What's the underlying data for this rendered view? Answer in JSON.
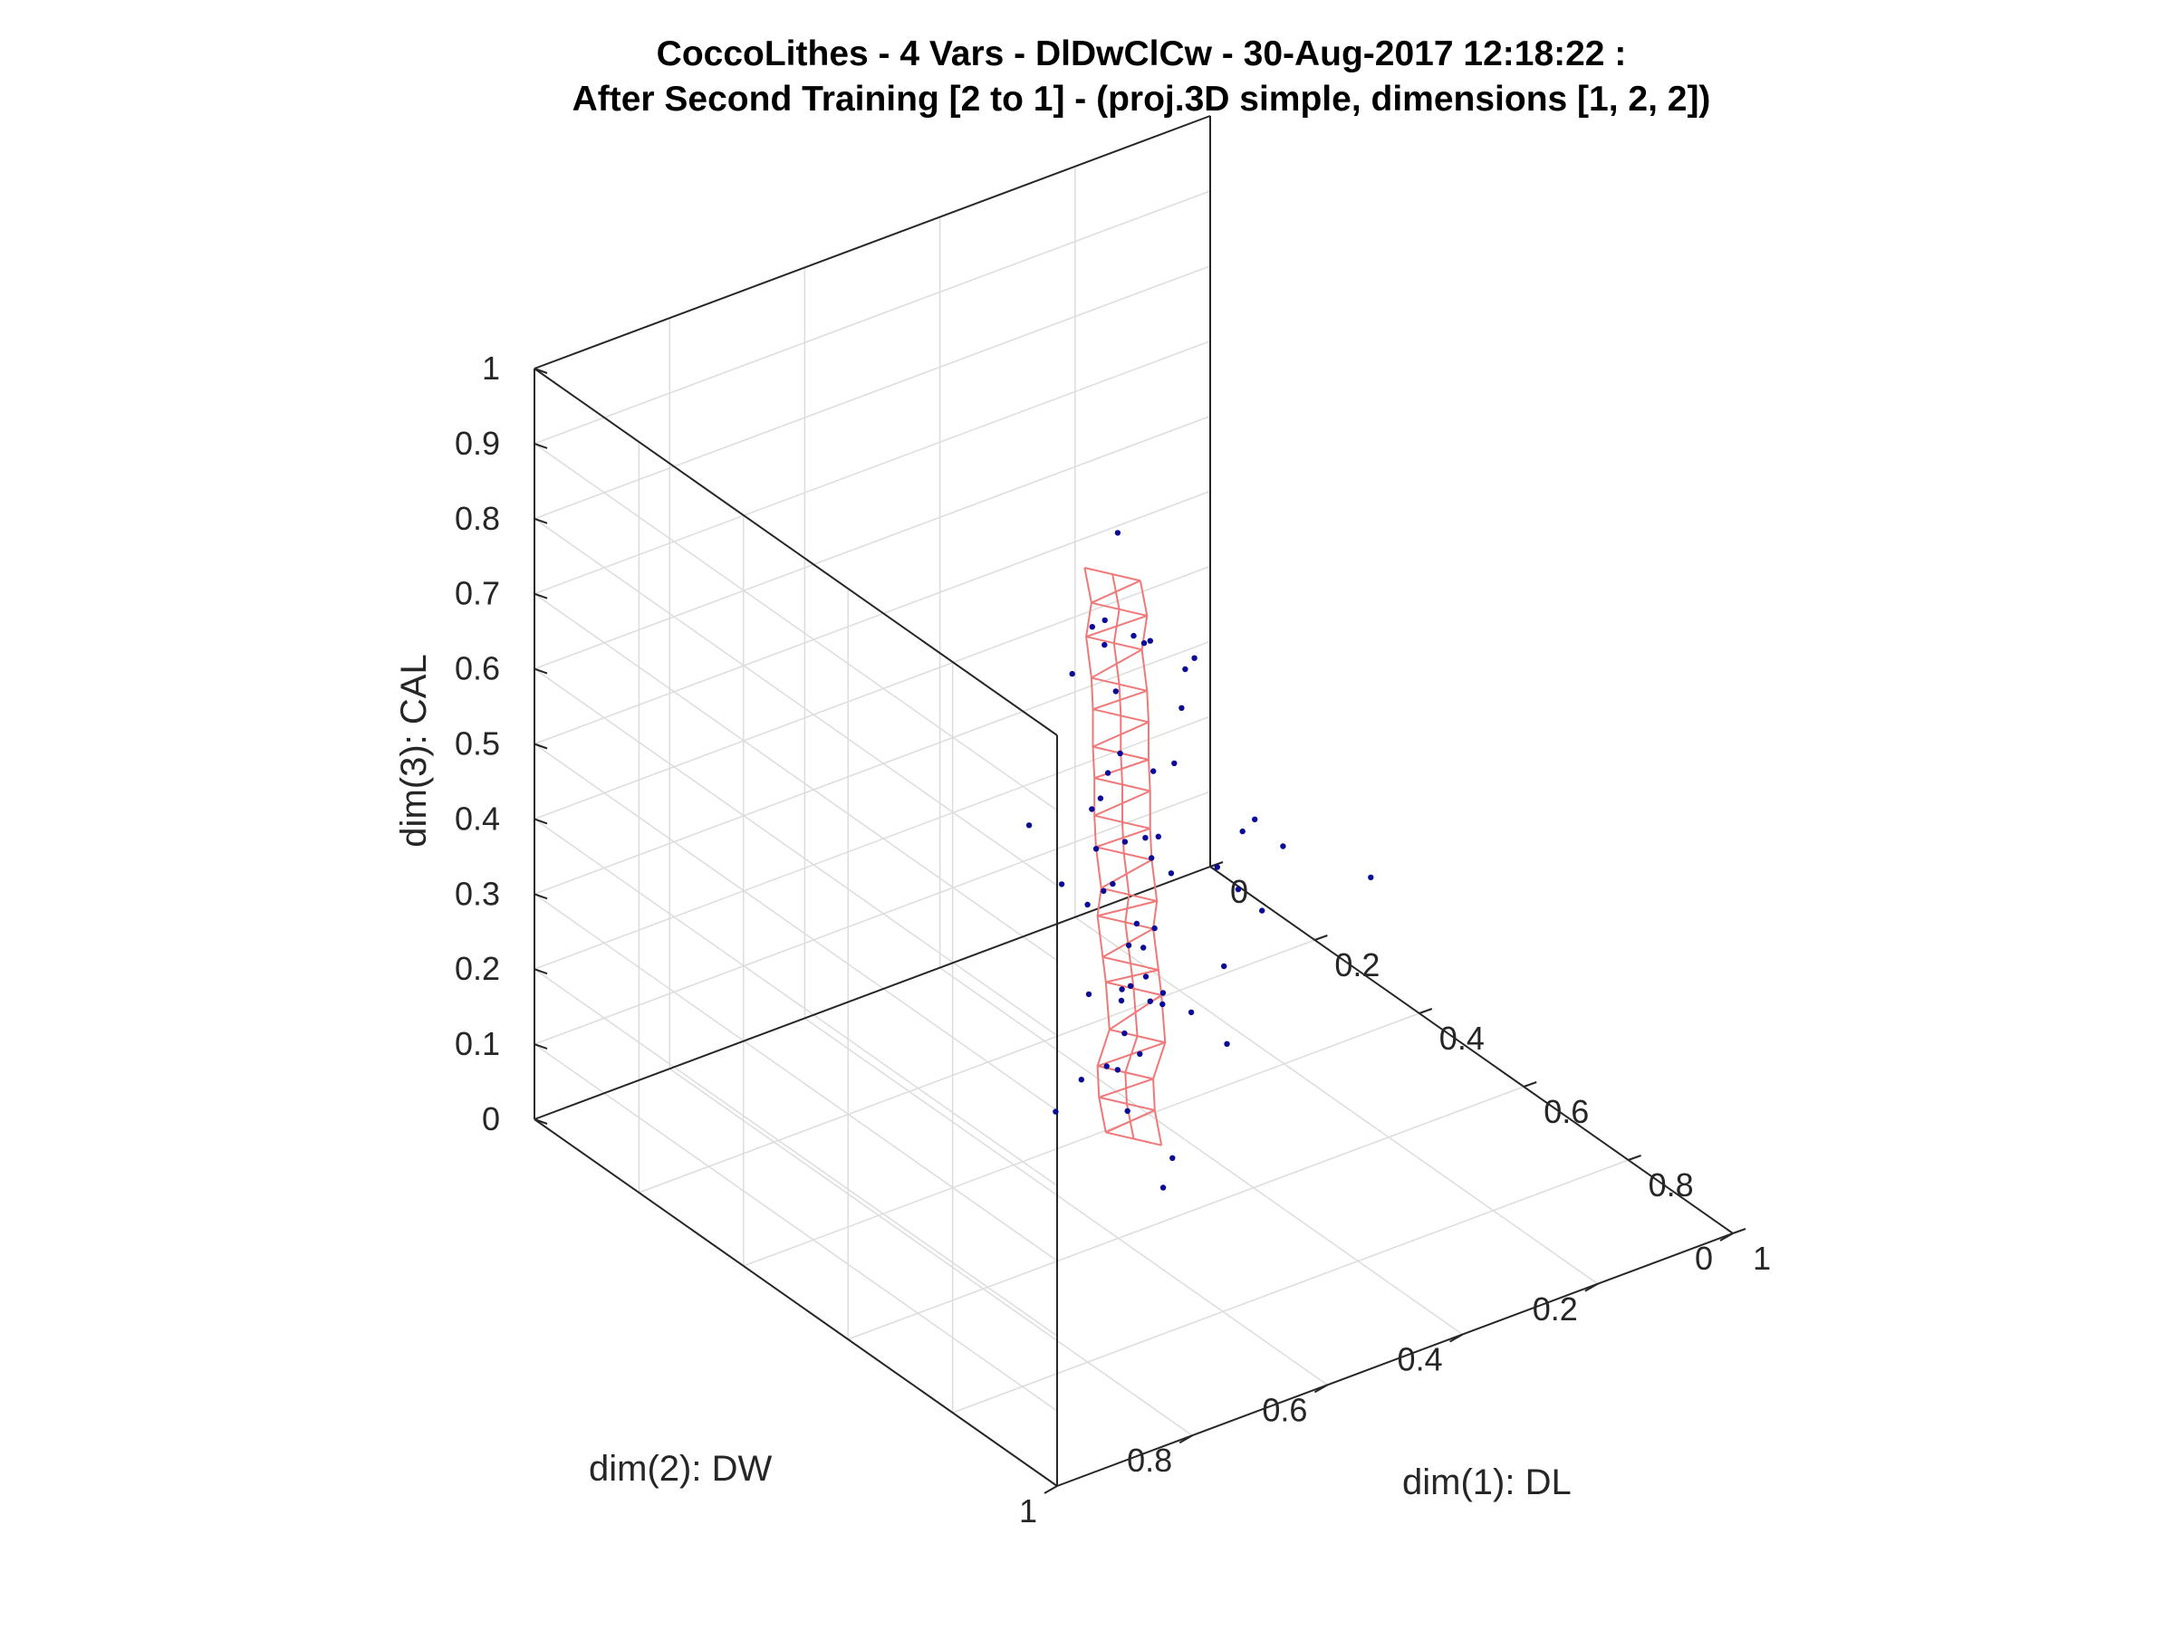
{
  "chart_data": {
    "type": "scatter",
    "title": [
      "CoccoLithes - 4 Vars - DlDwClCw - 30-Aug-2017 12:18:22 :",
      "After Second Training [2 to 1] - (proj.3D simple, dimensions [1, 2, 2])"
    ],
    "xlabel": "dim(1): DL",
    "ylabel": "dim(2): DW",
    "zlabel": "dim(3): CAL",
    "xlim": [
      0,
      1
    ],
    "ylim": [
      0,
      1
    ],
    "zlim": [
      0,
      1
    ],
    "xticks": [
      "0",
      "0.2",
      "0.4",
      "0.6",
      "0.8",
      "1"
    ],
    "yticks": [
      "0",
      "0.2",
      "0.4",
      "0.6",
      "0.8",
      "1"
    ],
    "zticks": [
      "0",
      "0.1",
      "0.2",
      "0.3",
      "0.4",
      "0.5",
      "0.6",
      "0.7",
      "0.8",
      "0.9",
      "1"
    ],
    "grid": true,
    "colors": {
      "points": "#0b0b98",
      "mesh": "#f07878",
      "grid": "#dcdcdc",
      "axes": "#262626"
    },
    "series": [
      {
        "kind": "data-points",
        "points": [
          [
            0.56,
            0.57,
            0.91
          ],
          [
            0.6,
            0.62,
            0.83
          ],
          [
            0.5,
            0.5,
            0.72
          ],
          [
            0.55,
            0.6,
            0.79
          ],
          [
            0.47,
            0.52,
            0.7
          ],
          [
            0.48,
            0.46,
            0.69
          ],
          [
            0.52,
            0.5,
            0.72
          ],
          [
            0.5,
            0.41,
            0.66
          ],
          [
            0.34,
            0.3,
            0.53
          ],
          [
            0.78,
            0.68,
            0.65
          ],
          [
            0.76,
            0.54,
            0.6
          ],
          [
            0.76,
            0.48,
            0.56
          ],
          [
            0.7,
            0.5,
            0.48
          ],
          [
            0.54,
            0.18,
            0.31
          ],
          [
            0.3,
            0.5,
            0.37
          ],
          [
            0.44,
            0.56,
            0.38
          ],
          [
            0.66,
            0.5,
            0.49
          ],
          [
            0.68,
            0.46,
            0.55
          ],
          [
            0.44,
            0.32,
            0.19
          ],
          [
            0.5,
            0.31,
            0.29
          ],
          [
            0.36,
            0.46,
            0.28
          ],
          [
            0.48,
            0.6,
            0.11
          ],
          [
            0.48,
            0.46,
            0.21
          ],
          [
            0.4,
            0.38,
            0.14
          ],
          [
            0.54,
            0.54,
            0.12
          ],
          [
            0.6,
            0.52,
            0.08
          ],
          [
            0.66,
            0.58,
            0.09
          ],
          [
            0.42,
            0.3,
            0.07
          ],
          [
            0.22,
            0.24,
            0.02
          ],
          [
            0.34,
            0.4,
            0.03
          ],
          [
            0.26,
            0.3,
            0.12
          ],
          [
            0.42,
            0.42,
            0.2
          ],
          [
            0.4,
            0.5,
            0.08
          ],
          [
            0.3,
            0.26,
            0.04
          ],
          [
            0.46,
            0.44,
            0.5
          ],
          [
            0.52,
            0.56,
            0.41
          ],
          [
            0.5,
            0.52,
            0.57
          ],
          [
            0.48,
            0.54,
            0.44
          ],
          [
            0.54,
            0.58,
            0.55
          ],
          [
            0.56,
            0.52,
            0.46
          ],
          [
            0.44,
            0.48,
            0.61
          ],
          [
            0.46,
            0.5,
            0.37
          ],
          [
            0.52,
            0.46,
            0.4
          ],
          [
            0.58,
            0.6,
            0.61
          ],
          [
            0.5,
            0.44,
            0.53
          ],
          [
            0.54,
            0.5,
            0.35
          ],
          [
            0.48,
            0.48,
            0.32
          ],
          [
            0.52,
            0.52,
            0.27
          ],
          [
            0.56,
            0.56,
            0.24
          ],
          [
            0.44,
            0.52,
            0.22
          ],
          [
            0.5,
            0.54,
            0.16
          ],
          [
            0.46,
            0.46,
            0.13
          ],
          [
            0.4,
            0.44,
            0.18
          ],
          [
            0.58,
            0.58,
            0.3
          ],
          [
            0.42,
            0.5,
            0.45
          ],
          [
            0.6,
            0.56,
            0.52
          ],
          [
            0.38,
            0.42,
            0.36
          ],
          [
            0.62,
            0.6,
            0.4
          ],
          [
            0.46,
            0.56,
            0.67
          ],
          [
            0.54,
            0.46,
            0.63
          ]
        ]
      },
      {
        "kind": "trained-network-mesh",
        "nodes": [
          [
            0.5,
            0.5,
            0.05
          ],
          [
            0.5,
            0.51,
            0.1
          ],
          [
            0.51,
            0.52,
            0.15
          ],
          [
            0.52,
            0.51,
            0.2
          ],
          [
            0.5,
            0.5,
            0.25
          ],
          [
            0.52,
            0.52,
            0.3
          ],
          [
            0.51,
            0.52,
            0.35
          ],
          [
            0.53,
            0.53,
            0.4
          ],
          [
            0.52,
            0.53,
            0.45
          ],
          [
            0.53,
            0.54,
            0.5
          ],
          [
            0.53,
            0.54,
            0.55
          ],
          [
            0.54,
            0.55,
            0.6
          ],
          [
            0.54,
            0.55,
            0.65
          ],
          [
            0.55,
            0.56,
            0.7
          ],
          [
            0.54,
            0.56,
            0.75
          ],
          [
            0.55,
            0.56,
            0.8
          ],
          [
            0.55,
            0.57,
            0.85
          ]
        ]
      }
    ]
  }
}
